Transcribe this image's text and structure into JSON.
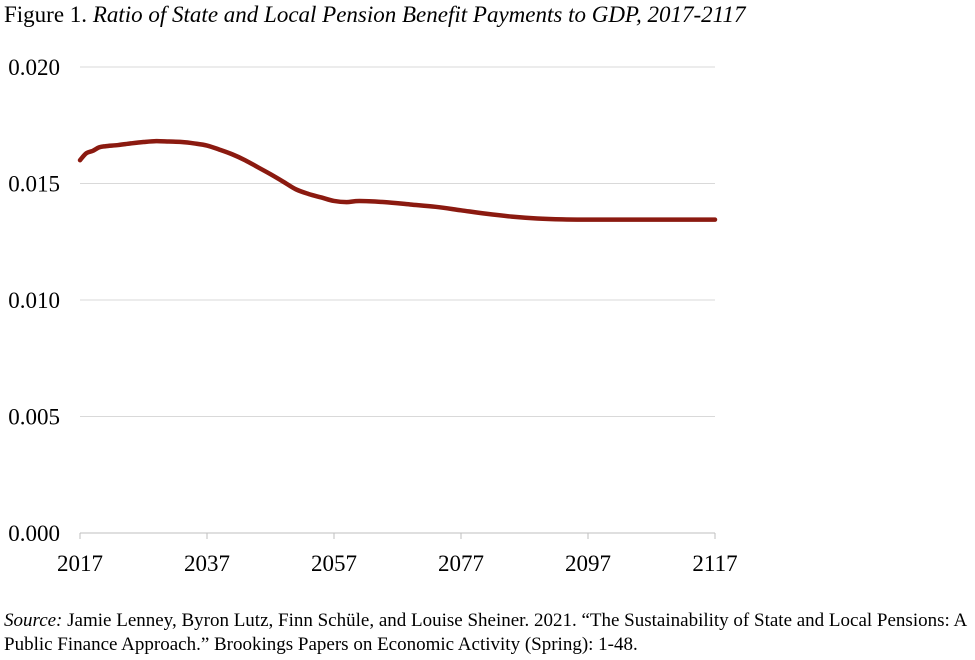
{
  "figure": {
    "label": "Figure 1.",
    "title": "Ratio of State and Local Pension Benefit Payments to GDP, 2017-2117"
  },
  "source": {
    "label": "Source:",
    "text": "Jamie Lenney, Byron Lutz, Finn Schüle, and Louise Sheiner. 2021. “The Sustainability of State and Local Pensions: A Public Finance Approach.” Brookings Papers on Economic Activity (Spring): 1-48."
  },
  "chart_data": {
    "type": "line",
    "title": "Ratio of State and Local Pension Benefit Payments to GDP, 2017-2117",
    "xlabel": "",
    "ylabel": "",
    "xlim": [
      2017,
      2117
    ],
    "ylim": [
      0.0,
      0.02
    ],
    "x_ticks": [
      "2017",
      "2037",
      "2057",
      "2077",
      "2097",
      "2117"
    ],
    "y_ticks": [
      "0.000",
      "0.005",
      "0.010",
      "0.015",
      "0.020"
    ],
    "grid": true,
    "legend": "none",
    "series": [
      {
        "color": "#8B1A10",
        "x": [
          2017,
          2018,
          2019,
          2020,
          2021,
          2023,
          2025,
          2027,
          2029,
          2031,
          2033,
          2035,
          2037,
          2039,
          2041,
          2043,
          2045,
          2047,
          2049,
          2051,
          2053,
          2055,
          2057,
          2059,
          2061,
          2065,
          2069,
          2073,
          2077,
          2081,
          2085,
          2089,
          2093,
          2097,
          2101,
          2105,
          2109,
          2113,
          2117
        ],
        "values": [
          0.016,
          0.0163,
          0.0164,
          0.01655,
          0.0166,
          0.01665,
          0.01672,
          0.01678,
          0.01682,
          0.0168,
          0.01678,
          0.01672,
          0.01663,
          0.01645,
          0.01625,
          0.016,
          0.0157,
          0.0154,
          0.01508,
          0.01475,
          0.01455,
          0.0144,
          0.01425,
          0.0142,
          0.01425,
          0.0142,
          0.0141,
          0.014,
          0.01385,
          0.0137,
          0.01358,
          0.0135,
          0.01346,
          0.01345,
          0.01345,
          0.01345,
          0.01345,
          0.01345,
          0.01345
        ]
      }
    ]
  }
}
